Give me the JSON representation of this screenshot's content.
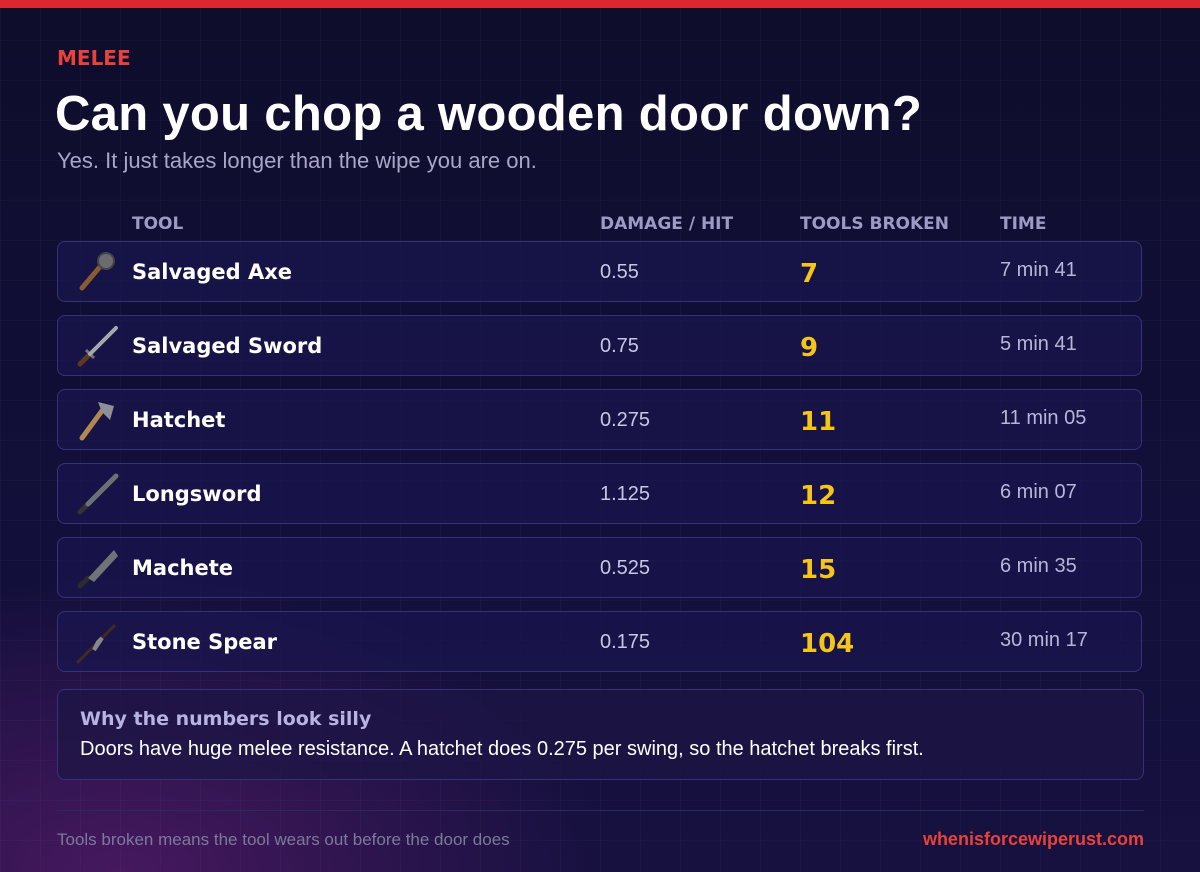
{
  "header": {
    "eyebrow": "MELEE",
    "title": "Can you chop a wooden door down?",
    "subtitle": "Yes. It just takes longer than the wipe you are on."
  },
  "table": {
    "columns": [
      "TOOL",
      "DAMAGE / HIT",
      "TOOLS BROKEN",
      "TIME"
    ],
    "rows": [
      [
        "Salvaged Axe",
        "0.55",
        "7",
        "7 min 41"
      ],
      [
        "Salvaged Sword",
        "0.75",
        "9",
        "5 min 41"
      ],
      [
        "Hatchet",
        "0.275",
        "11",
        "11 min 05"
      ],
      [
        "Longsword",
        "1.125",
        "12",
        "6 min 07"
      ],
      [
        "Machete",
        "0.525",
        "15",
        "6 min 35"
      ],
      [
        "Stone Spear",
        "0.175",
        "104",
        "30 min 17"
      ]
    ]
  },
  "note": {
    "title": "Why the numbers look silly",
    "text": "Doors have huge melee resistance. A hatchet does 0.275 per swing, so the hatchet breaks first."
  },
  "footer": {
    "left": "Tools broken means the tool wears out before the door does",
    "right": "whenisforcewiperust.com"
  }
}
